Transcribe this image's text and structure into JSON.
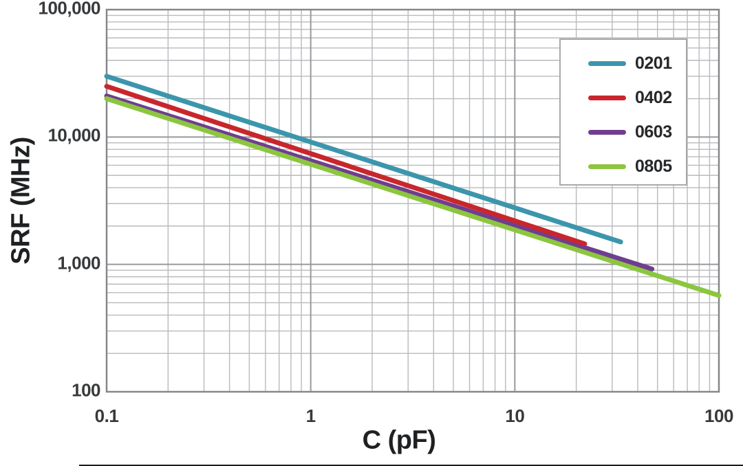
{
  "colors": {
    "background": "#ffffff",
    "grid_minor": "#b8babd",
    "grid_major": "#97999b",
    "plot_border": "#85878a",
    "text": "#1e2022",
    "tick_text": "#37393b",
    "legend_border": "#a7a9ac",
    "bottom_bar": "#1b1b1b"
  },
  "chart_data": {
    "type": "line",
    "title": "",
    "xlabel": "C (pF)",
    "ylabel": "SRF (MHz)",
    "x_scale": "log",
    "y_scale": "log",
    "xlim": [
      0.1,
      100
    ],
    "ylim": [
      100,
      100000
    ],
    "grid": "major+minor",
    "legend_position": "top-right",
    "x_ticks": [
      {
        "value": 0.1,
        "label": "0.1"
      },
      {
        "value": 1,
        "label": "1"
      },
      {
        "value": 10,
        "label": "10"
      },
      {
        "value": 100,
        "label": "100"
      }
    ],
    "y_ticks": [
      {
        "value": 100000,
        "label": "100,000"
      },
      {
        "value": 10000,
        "label": "10,000"
      },
      {
        "value": 1000,
        "label": "1,000"
      },
      {
        "value": 100,
        "label": "100"
      }
    ],
    "series": [
      {
        "name": "0201",
        "color": "#3B96AC",
        "points": [
          [
            0.1,
            30000
          ],
          [
            33,
            1500
          ]
        ]
      },
      {
        "name": "0402",
        "color": "#C9262C",
        "points": [
          [
            0.1,
            25000
          ],
          [
            22,
            1450
          ]
        ]
      },
      {
        "name": "0603",
        "color": "#6F3D91",
        "points": [
          [
            0.1,
            21000
          ],
          [
            47,
            920
          ]
        ]
      },
      {
        "name": "0805",
        "color": "#8CC63F",
        "points": [
          [
            0.1,
            20000
          ],
          [
            100,
            570
          ]
        ]
      }
    ]
  }
}
